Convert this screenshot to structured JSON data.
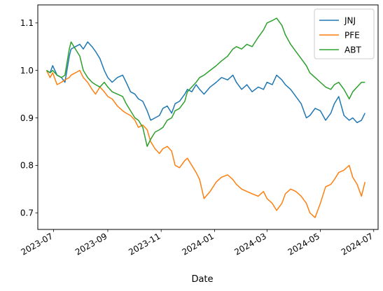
{
  "chart_data": {
    "type": "line",
    "xlabel": "Date",
    "ylabel": "",
    "title": "",
    "x_axis_type": "date",
    "xlim": [
      "2023-06-13",
      "2024-07-06"
    ],
    "ylim": [
      0.665,
      1.138
    ],
    "x_ticks": [
      {
        "date": "2023-07-01",
        "label": "2023-07"
      },
      {
        "date": "2023-09-01",
        "label": "2023-09"
      },
      {
        "date": "2023-11-01",
        "label": "2023-11"
      },
      {
        "date": "2024-01-01",
        "label": "2024-01"
      },
      {
        "date": "2024-03-01",
        "label": "2024-03"
      },
      {
        "date": "2024-05-01",
        "label": "2024-05"
      },
      {
        "date": "2024-07-01",
        "label": "2024-07"
      }
    ],
    "y_ticks": [
      {
        "value": 0.7,
        "label": "0.7"
      },
      {
        "value": 0.8,
        "label": "0.8"
      },
      {
        "value": 0.9,
        "label": "0.9"
      },
      {
        "value": 1.0,
        "label": "1.0"
      },
      {
        "value": 1.1,
        "label": "1.1"
      }
    ],
    "grid": false,
    "legend": {
      "position": "top-right"
    },
    "series": [
      {
        "name": "JNJ",
        "color": "#1f77b4",
        "points": [
          [
            "2023-06-23",
            1.0
          ],
          [
            "2023-06-27",
            0.995
          ],
          [
            "2023-06-30",
            1.01
          ],
          [
            "2023-07-05",
            0.99
          ],
          [
            "2023-07-10",
            0.985
          ],
          [
            "2023-07-14",
            0.975
          ],
          [
            "2023-07-19",
            1.03
          ],
          [
            "2023-07-21",
            1.045
          ],
          [
            "2023-07-26",
            1.05
          ],
          [
            "2023-07-31",
            1.055
          ],
          [
            "2023-08-04",
            1.045
          ],
          [
            "2023-08-09",
            1.06
          ],
          [
            "2023-08-14",
            1.05
          ],
          [
            "2023-08-18",
            1.04
          ],
          [
            "2023-08-23",
            1.025
          ],
          [
            "2023-08-28",
            1.0
          ],
          [
            "2023-09-01",
            0.985
          ],
          [
            "2023-09-06",
            0.975
          ],
          [
            "2023-09-12",
            0.985
          ],
          [
            "2023-09-18",
            0.99
          ],
          [
            "2023-09-22",
            0.975
          ],
          [
            "2023-09-27",
            0.955
          ],
          [
            "2023-10-02",
            0.95
          ],
          [
            "2023-10-06",
            0.94
          ],
          [
            "2023-10-11",
            0.935
          ],
          [
            "2023-10-16",
            0.915
          ],
          [
            "2023-10-20",
            0.895
          ],
          [
            "2023-10-25",
            0.9
          ],
          [
            "2023-10-30",
            0.905
          ],
          [
            "2023-11-03",
            0.92
          ],
          [
            "2023-11-08",
            0.925
          ],
          [
            "2023-11-13",
            0.91
          ],
          [
            "2023-11-17",
            0.93
          ],
          [
            "2023-11-22",
            0.935
          ],
          [
            "2023-11-28",
            0.95
          ],
          [
            "2023-12-01",
            0.96
          ],
          [
            "2023-12-06",
            0.955
          ],
          [
            "2023-12-11",
            0.97
          ],
          [
            "2023-12-15",
            0.96
          ],
          [
            "2023-12-20",
            0.95
          ],
          [
            "2023-12-27",
            0.965
          ],
          [
            "2024-01-03",
            0.975
          ],
          [
            "2024-01-09",
            0.985
          ],
          [
            "2024-01-16",
            0.98
          ],
          [
            "2024-01-22",
            0.99
          ],
          [
            "2024-01-26",
            0.975
          ],
          [
            "2024-02-01",
            0.96
          ],
          [
            "2024-02-07",
            0.97
          ],
          [
            "2024-02-13",
            0.955
          ],
          [
            "2024-02-20",
            0.965
          ],
          [
            "2024-02-26",
            0.96
          ],
          [
            "2024-03-01",
            0.975
          ],
          [
            "2024-03-07",
            0.97
          ],
          [
            "2024-03-12",
            0.99
          ],
          [
            "2024-03-18",
            0.98
          ],
          [
            "2024-03-22",
            0.97
          ],
          [
            "2024-03-28",
            0.96
          ],
          [
            "2024-04-03",
            0.945
          ],
          [
            "2024-04-09",
            0.93
          ],
          [
            "2024-04-15",
            0.9
          ],
          [
            "2024-04-19",
            0.905
          ],
          [
            "2024-04-25",
            0.92
          ],
          [
            "2024-05-01",
            0.915
          ],
          [
            "2024-05-07",
            0.895
          ],
          [
            "2024-05-13",
            0.91
          ],
          [
            "2024-05-17",
            0.93
          ],
          [
            "2024-05-22",
            0.945
          ],
          [
            "2024-05-28",
            0.905
          ],
          [
            "2024-06-03",
            0.895
          ],
          [
            "2024-06-07",
            0.9
          ],
          [
            "2024-06-12",
            0.89
          ],
          [
            "2024-06-17",
            0.895
          ],
          [
            "2024-06-21",
            0.91
          ]
        ]
      },
      {
        "name": "PFE",
        "color": "#ff7f0e",
        "points": [
          [
            "2023-06-23",
            1.0
          ],
          [
            "2023-06-27",
            0.985
          ],
          [
            "2023-06-30",
            0.995
          ],
          [
            "2023-07-05",
            0.97
          ],
          [
            "2023-07-10",
            0.975
          ],
          [
            "2023-07-14",
            0.98
          ],
          [
            "2023-07-19",
            0.985
          ],
          [
            "2023-07-21",
            0.99
          ],
          [
            "2023-07-26",
            0.995
          ],
          [
            "2023-07-31",
            1.0
          ],
          [
            "2023-08-04",
            0.985
          ],
          [
            "2023-08-09",
            0.975
          ],
          [
            "2023-08-14",
            0.96
          ],
          [
            "2023-08-18",
            0.95
          ],
          [
            "2023-08-23",
            0.965
          ],
          [
            "2023-08-28",
            0.955
          ],
          [
            "2023-09-01",
            0.945
          ],
          [
            "2023-09-06",
            0.94
          ],
          [
            "2023-09-12",
            0.925
          ],
          [
            "2023-09-18",
            0.915
          ],
          [
            "2023-09-22",
            0.91
          ],
          [
            "2023-09-27",
            0.905
          ],
          [
            "2023-10-02",
            0.895
          ],
          [
            "2023-10-06",
            0.88
          ],
          [
            "2023-10-11",
            0.885
          ],
          [
            "2023-10-16",
            0.875
          ],
          [
            "2023-10-20",
            0.85
          ],
          [
            "2023-10-25",
            0.835
          ],
          [
            "2023-10-30",
            0.825
          ],
          [
            "2023-11-03",
            0.835
          ],
          [
            "2023-11-08",
            0.84
          ],
          [
            "2023-11-13",
            0.83
          ],
          [
            "2023-11-17",
            0.8
          ],
          [
            "2023-11-22",
            0.795
          ],
          [
            "2023-11-28",
            0.81
          ],
          [
            "2023-12-01",
            0.815
          ],
          [
            "2023-12-06",
            0.8
          ],
          [
            "2023-12-11",
            0.785
          ],
          [
            "2023-12-15",
            0.77
          ],
          [
            "2023-12-20",
            0.73
          ],
          [
            "2023-12-27",
            0.745
          ],
          [
            "2024-01-03",
            0.765
          ],
          [
            "2024-01-09",
            0.775
          ],
          [
            "2024-01-16",
            0.78
          ],
          [
            "2024-01-22",
            0.77
          ],
          [
            "2024-01-26",
            0.76
          ],
          [
            "2024-02-01",
            0.75
          ],
          [
            "2024-02-07",
            0.745
          ],
          [
            "2024-02-13",
            0.74
          ],
          [
            "2024-02-20",
            0.735
          ],
          [
            "2024-02-26",
            0.745
          ],
          [
            "2024-03-01",
            0.73
          ],
          [
            "2024-03-07",
            0.72
          ],
          [
            "2024-03-12",
            0.705
          ],
          [
            "2024-03-18",
            0.72
          ],
          [
            "2024-03-22",
            0.74
          ],
          [
            "2024-03-28",
            0.75
          ],
          [
            "2024-04-03",
            0.745
          ],
          [
            "2024-04-09",
            0.735
          ],
          [
            "2024-04-15",
            0.72
          ],
          [
            "2024-04-19",
            0.7
          ],
          [
            "2024-04-25",
            0.69
          ],
          [
            "2024-05-01",
            0.72
          ],
          [
            "2024-05-07",
            0.755
          ],
          [
            "2024-05-13",
            0.76
          ],
          [
            "2024-05-17",
            0.77
          ],
          [
            "2024-05-22",
            0.785
          ],
          [
            "2024-05-28",
            0.79
          ],
          [
            "2024-06-03",
            0.8
          ],
          [
            "2024-06-07",
            0.775
          ],
          [
            "2024-06-12",
            0.76
          ],
          [
            "2024-06-17",
            0.735
          ],
          [
            "2024-06-21",
            0.765
          ]
        ]
      },
      {
        "name": "ABT",
        "color": "#2ca02c",
        "points": [
          [
            "2023-06-23",
            1.0
          ],
          [
            "2023-06-27",
            0.995
          ],
          [
            "2023-06-30",
            1.0
          ],
          [
            "2023-07-05",
            0.99
          ],
          [
            "2023-07-10",
            0.985
          ],
          [
            "2023-07-14",
            0.99
          ],
          [
            "2023-07-19",
            1.045
          ],
          [
            "2023-07-21",
            1.06
          ],
          [
            "2023-07-26",
            1.045
          ],
          [
            "2023-07-31",
            1.03
          ],
          [
            "2023-08-04",
            1.0
          ],
          [
            "2023-08-09",
            0.985
          ],
          [
            "2023-08-14",
            0.975
          ],
          [
            "2023-08-18",
            0.97
          ],
          [
            "2023-08-23",
            0.965
          ],
          [
            "2023-08-28",
            0.975
          ],
          [
            "2023-09-01",
            0.965
          ],
          [
            "2023-09-06",
            0.955
          ],
          [
            "2023-09-12",
            0.95
          ],
          [
            "2023-09-18",
            0.945
          ],
          [
            "2023-09-22",
            0.93
          ],
          [
            "2023-09-27",
            0.915
          ],
          [
            "2023-10-02",
            0.9
          ],
          [
            "2023-10-06",
            0.895
          ],
          [
            "2023-10-11",
            0.88
          ],
          [
            "2023-10-16",
            0.84
          ],
          [
            "2023-10-20",
            0.855
          ],
          [
            "2023-10-25",
            0.87
          ],
          [
            "2023-10-30",
            0.875
          ],
          [
            "2023-11-03",
            0.88
          ],
          [
            "2023-11-08",
            0.895
          ],
          [
            "2023-11-13",
            0.9
          ],
          [
            "2023-11-17",
            0.915
          ],
          [
            "2023-11-22",
            0.92
          ],
          [
            "2023-11-28",
            0.935
          ],
          [
            "2023-12-01",
            0.955
          ],
          [
            "2023-12-06",
            0.965
          ],
          [
            "2023-12-11",
            0.975
          ],
          [
            "2023-12-15",
            0.985
          ],
          [
            "2023-12-20",
            0.99
          ],
          [
            "2023-12-27",
            1.0
          ],
          [
            "2024-01-03",
            1.01
          ],
          [
            "2024-01-09",
            1.02
          ],
          [
            "2024-01-16",
            1.03
          ],
          [
            "2024-01-22",
            1.045
          ],
          [
            "2024-01-26",
            1.05
          ],
          [
            "2024-02-01",
            1.045
          ],
          [
            "2024-02-07",
            1.055
          ],
          [
            "2024-02-13",
            1.05
          ],
          [
            "2024-02-20",
            1.07
          ],
          [
            "2024-02-26",
            1.085
          ],
          [
            "2024-03-01",
            1.1
          ],
          [
            "2024-03-07",
            1.105
          ],
          [
            "2024-03-12",
            1.11
          ],
          [
            "2024-03-18",
            1.095
          ],
          [
            "2024-03-22",
            1.075
          ],
          [
            "2024-03-28",
            1.055
          ],
          [
            "2024-04-03",
            1.04
          ],
          [
            "2024-04-09",
            1.025
          ],
          [
            "2024-04-15",
            1.01
          ],
          [
            "2024-04-19",
            0.995
          ],
          [
            "2024-04-25",
            0.985
          ],
          [
            "2024-05-01",
            0.975
          ],
          [
            "2024-05-07",
            0.965
          ],
          [
            "2024-05-13",
            0.96
          ],
          [
            "2024-05-17",
            0.97
          ],
          [
            "2024-05-22",
            0.975
          ],
          [
            "2024-05-28",
            0.96
          ],
          [
            "2024-06-03",
            0.94
          ],
          [
            "2024-06-07",
            0.955
          ],
          [
            "2024-06-12",
            0.965
          ],
          [
            "2024-06-17",
            0.975
          ],
          [
            "2024-06-21",
            0.975
          ]
        ]
      }
    ]
  }
}
